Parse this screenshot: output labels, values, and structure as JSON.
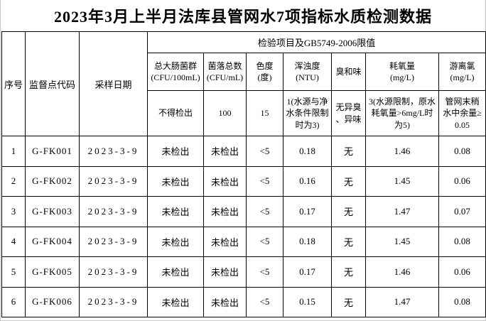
{
  "title": "2023年3月上半月法库县管网水7项指标水质检测数据",
  "table": {
    "left_headers": [
      "序号",
      "监督点代码",
      "采样日期"
    ],
    "group_header": "检验项目及GB5749-2006限值",
    "columns": [
      {
        "label": "总大肠菌群\n(CFU/100mL)",
        "limit": "不得检出"
      },
      {
        "label": "菌落总数\n(CFU/mL)",
        "limit": "100"
      },
      {
        "label": "色度\n(度)",
        "limit": "15"
      },
      {
        "label": "浑浊度\n(NTU)",
        "limit": "1(水源与净水条件限制时为3)"
      },
      {
        "label": "臭和味",
        "limit": "无异臭、异味"
      },
      {
        "label": "耗氧量\n(mg/L)",
        "limit": "3(水源限制，原水耗氧量>6mg/L时为5)"
      },
      {
        "label": "游离氯\n(mg/L)",
        "limit": "管网末稍水中余量≥0.05"
      }
    ],
    "rows": [
      [
        "1",
        "G-FK001",
        "2023-3-9",
        "未检出",
        "未检出",
        "<5",
        "0.18",
        "无",
        "1.46",
        "0.08"
      ],
      [
        "2",
        "G-FK002",
        "2023-3-9",
        "未检出",
        "未检出",
        "<5",
        "0.16",
        "无",
        "1.45",
        "0.06"
      ],
      [
        "3",
        "G-FK003",
        "2023-3-9",
        "未检出",
        "未检出",
        "<5",
        "0.17",
        "无",
        "1.47",
        "0.07"
      ],
      [
        "4",
        "G-FK004",
        "2023-3-9",
        "未检出",
        "未检出",
        "<5",
        "0.18",
        "无",
        "1.45",
        "0.08"
      ],
      [
        "5",
        "G-FK005",
        "2023-3-9",
        "未检出",
        "未检出",
        "<5",
        "0.17",
        "无",
        "1.46",
        "0.06"
      ],
      [
        "6",
        "G-FK006",
        "2023-3-9",
        "未检出",
        "未检出",
        "<5",
        "0.15",
        "无",
        "1.47",
        "0.08"
      ]
    ]
  },
  "colors": {
    "background": "#ffffff",
    "text": "#000000",
    "table_border": "#000000",
    "sheet_gridline": "#c8c8c8"
  }
}
